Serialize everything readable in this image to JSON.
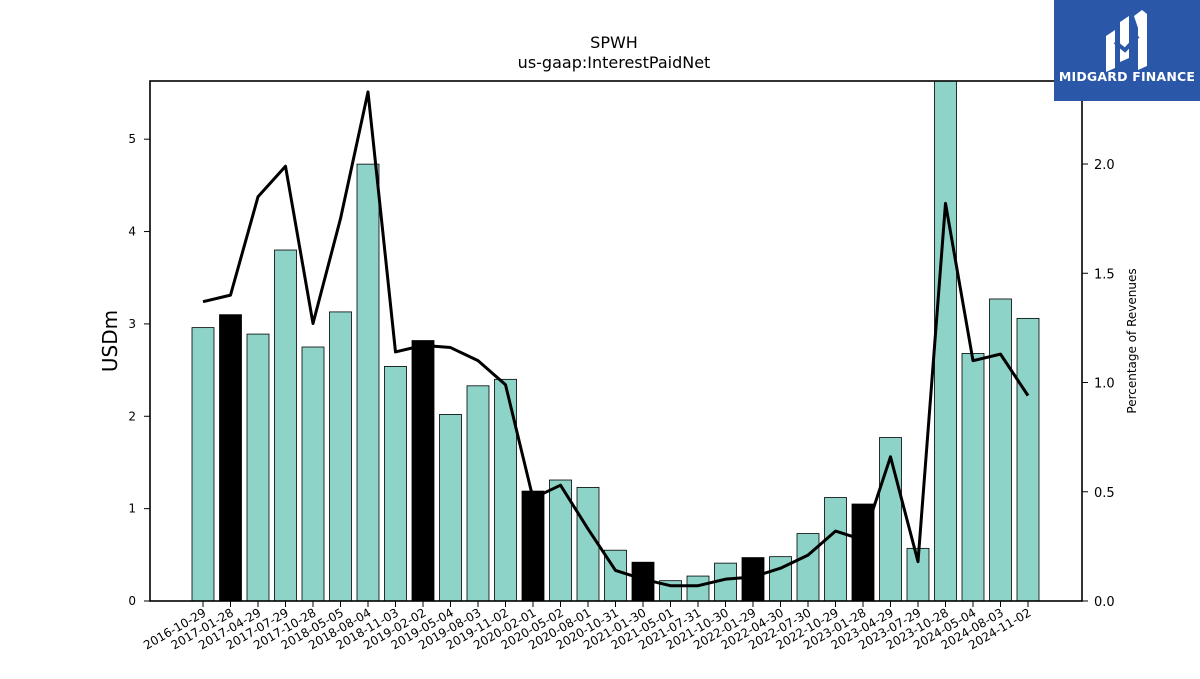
{
  "logo": {
    "text": "MIDGARD FINANCE",
    "background": "#2a57a8"
  },
  "chart_data": {
    "type": "bar",
    "title": "SPWH",
    "subtitle": "us-gaap:InterestPaidNet",
    "ylabel": "USDm",
    "y2label": "Percentage of Revenues",
    "ylim": [
      0,
      5.63
    ],
    "y2lim": [
      0,
      2.38
    ],
    "yticks": [
      0,
      1,
      2,
      3,
      4,
      5
    ],
    "y2ticks": [
      "0.0",
      "0.5",
      "1.0",
      "1.5",
      "2.0"
    ],
    "bar_color": "#8dd3c7",
    "highlight_color": "#000000",
    "line_color": "#000000",
    "categories": [
      "2016-10-29",
      "2017-01-28",
      "2017-04-29",
      "2017-07-29",
      "2017-10-28",
      "2018-05-05",
      "2018-08-04",
      "2018-11-03",
      "2019-02-02",
      "2019-05-04",
      "2019-08-03",
      "2019-11-02",
      "2020-02-01",
      "2020-05-02",
      "2020-08-01",
      "2020-10-31",
      "2021-01-30",
      "2021-05-01",
      "2021-07-31",
      "2021-10-30",
      "2022-01-29",
      "2022-04-30",
      "2022-07-30",
      "2022-10-29",
      "2023-01-28",
      "2023-04-29",
      "2023-07-29",
      "2023-10-28",
      "2024-05-04",
      "2024-08-03",
      "2024-11-02"
    ],
    "series": [
      {
        "type": "bar",
        "values": [
          2.96,
          3.1,
          2.89,
          3.8,
          2.75,
          3.13,
          4.73,
          2.54,
          2.82,
          2.02,
          2.33,
          2.4,
          1.19,
          1.31,
          1.23,
          0.55,
          0.42,
          0.22,
          0.27,
          0.41,
          0.47,
          0.48,
          0.73,
          1.12,
          1.05,
          1.77,
          0.57,
          5.63,
          2.68,
          3.27,
          3.06
        ]
      },
      {
        "type": "line",
        "axis": "right",
        "values": [
          1.37,
          1.4,
          1.85,
          1.99,
          1.27,
          1.75,
          2.33,
          1.14,
          1.17,
          1.16,
          1.1,
          0.99,
          0.47,
          0.53,
          0.33,
          0.14,
          0.1,
          0.07,
          0.07,
          0.1,
          0.11,
          0.15,
          0.21,
          0.32,
          0.28,
          0.66,
          0.18,
          1.82,
          1.1,
          1.13,
          0.94
        ]
      }
    ],
    "highlighted": [
      false,
      true,
      false,
      false,
      false,
      false,
      false,
      false,
      true,
      false,
      false,
      false,
      true,
      false,
      false,
      false,
      true,
      false,
      false,
      false,
      true,
      false,
      false,
      false,
      true,
      false,
      false,
      false,
      false,
      false,
      false
    ],
    "legend": "none",
    "grid": false
  }
}
